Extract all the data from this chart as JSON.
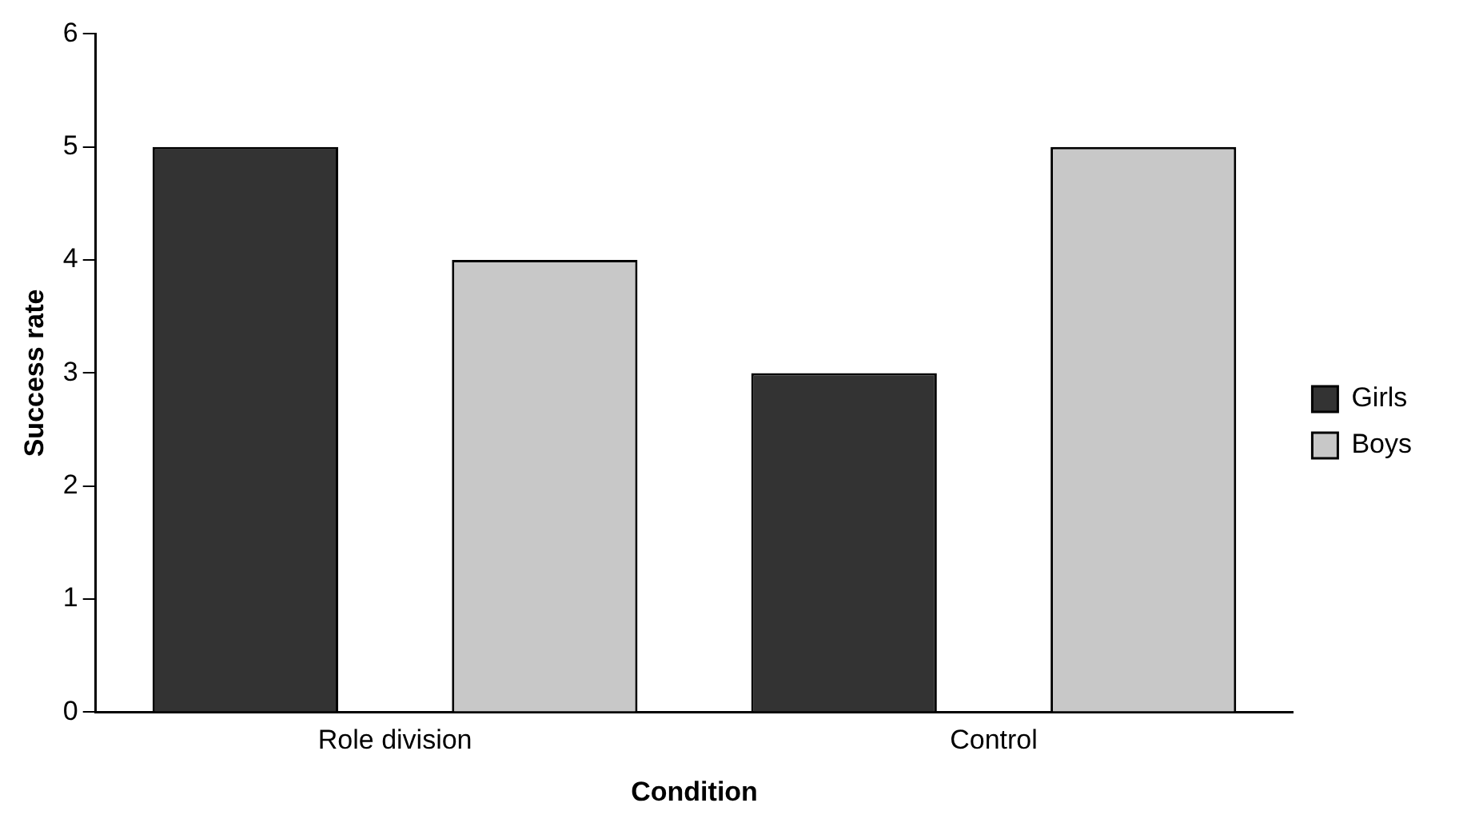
{
  "chart_data": {
    "type": "bar",
    "xlabel": "Condition",
    "ylabel": "Success rate",
    "categories": [
      "Role division",
      "Control"
    ],
    "series": [
      {
        "name": "Girls",
        "color": "#333333",
        "values": [
          5,
          3
        ]
      },
      {
        "name": "Boys",
        "color": "#c8c8c8",
        "values": [
          4,
          5
        ]
      }
    ],
    "ylim": [
      0,
      6
    ],
    "yticks": [
      0,
      1,
      2,
      3,
      4,
      5,
      6
    ],
    "grid": false,
    "legend": "right"
  }
}
